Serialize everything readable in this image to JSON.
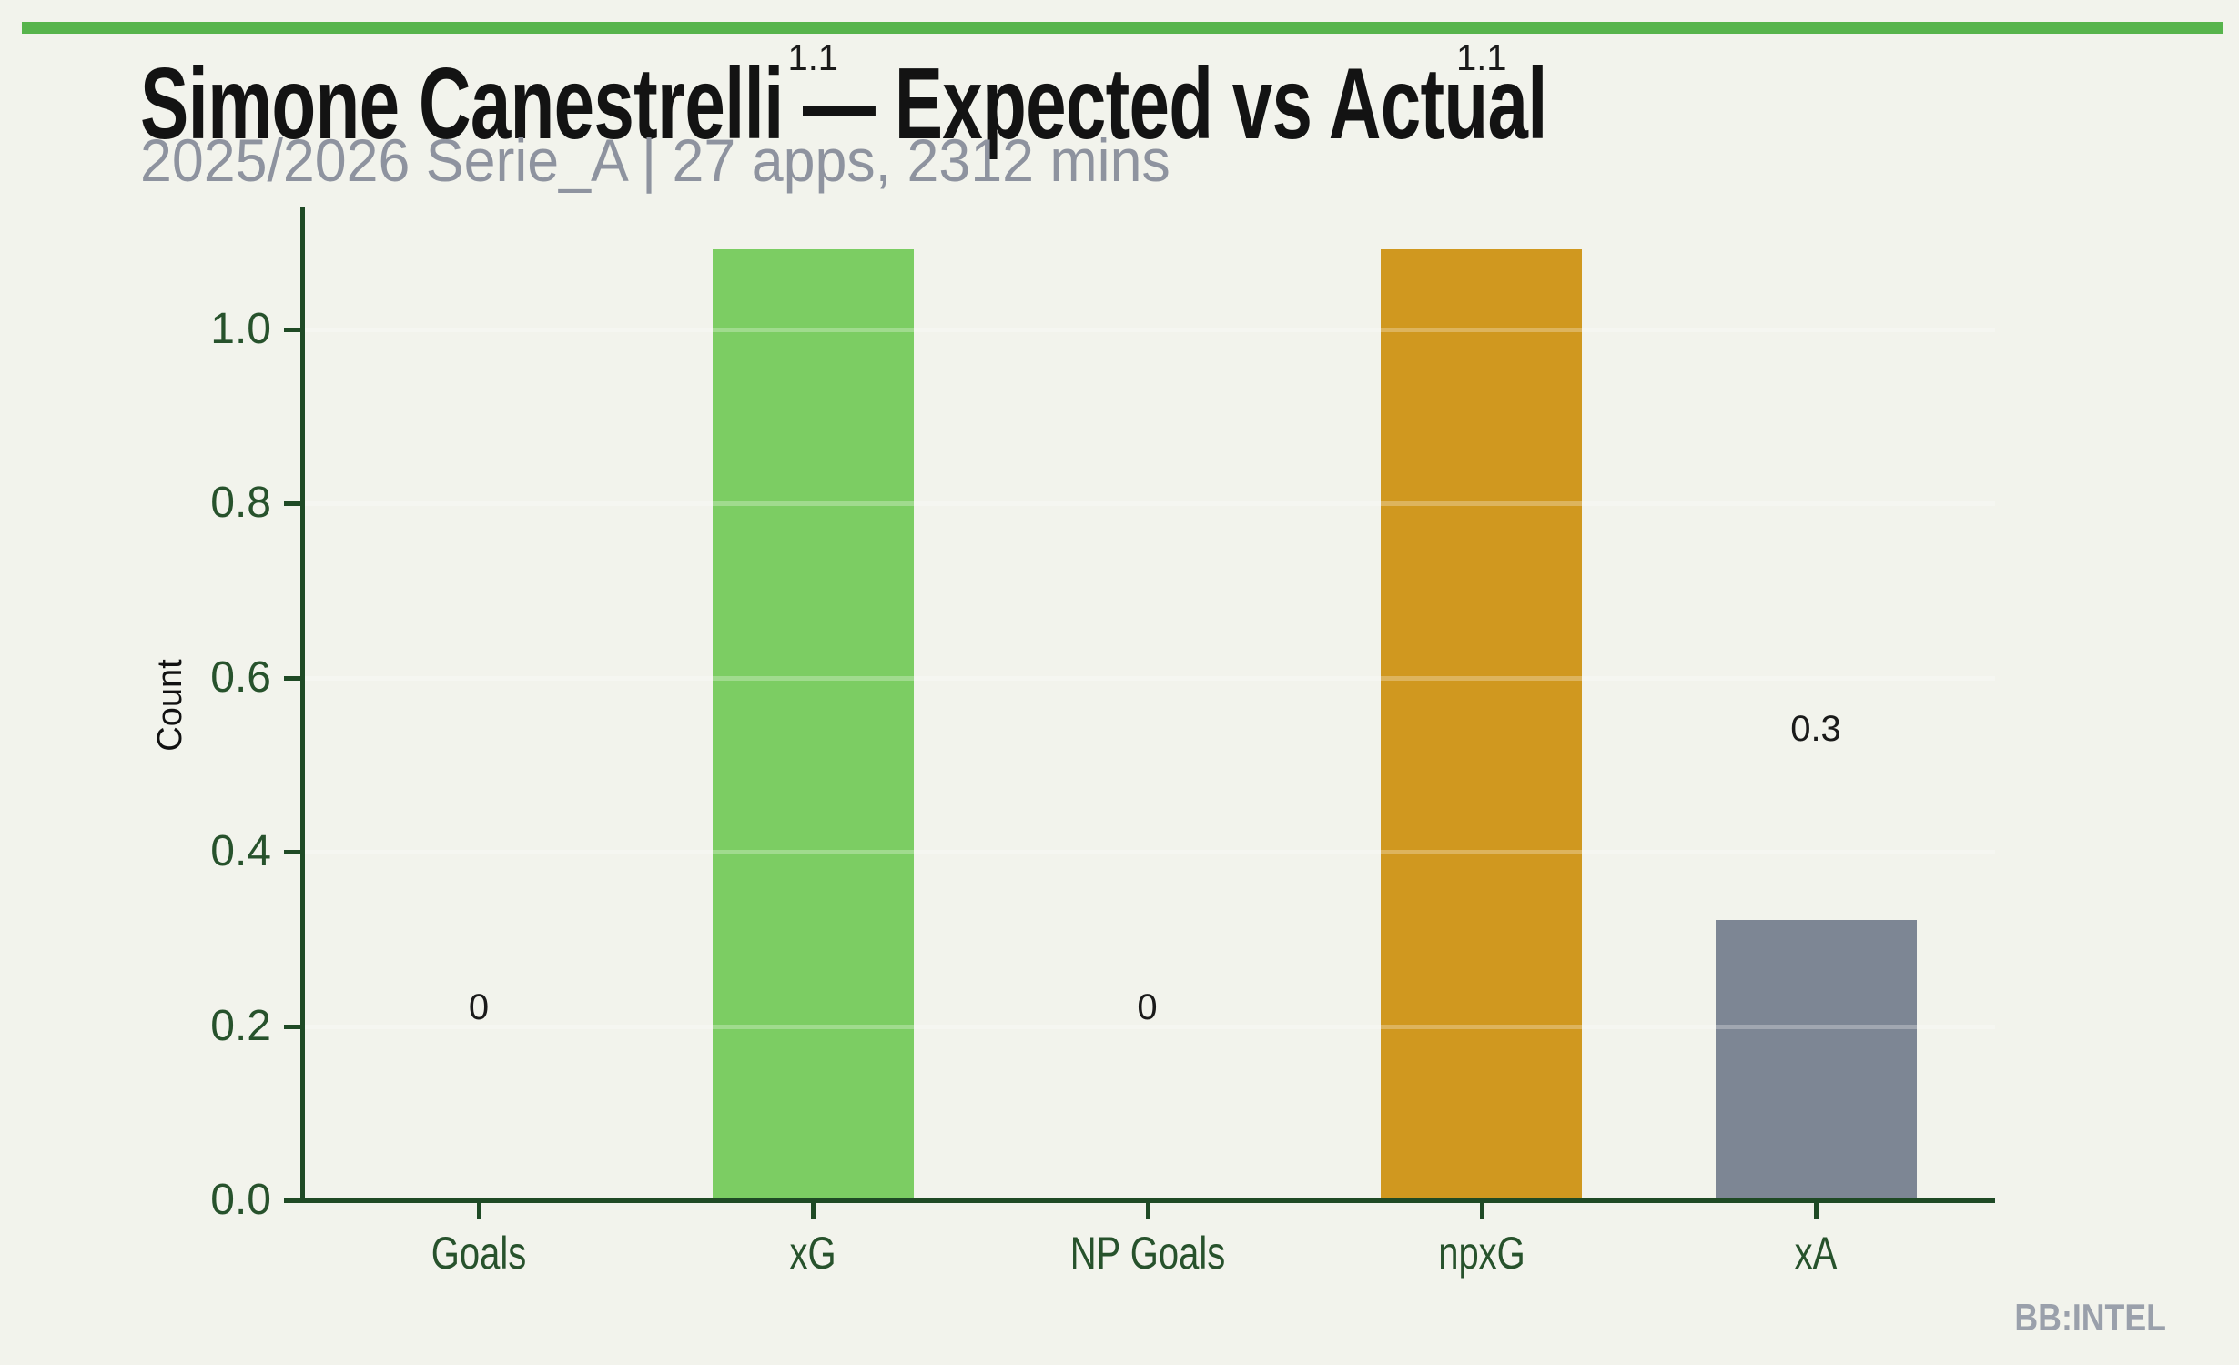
{
  "page": {
    "background_color": "#f2f3ec",
    "accent_bar_color": "#57b44c"
  },
  "header": {
    "title": "Simone Canestrelli — Expected vs Actual",
    "subtitle": "2025/2026 Serie_A | 27 apps, 2312 mins"
  },
  "watermark": "BB:INTEL",
  "chart_data": {
    "type": "bar",
    "title": "Simone Canestrelli — Expected vs Actual",
    "subtitle": "2025/2026 Serie_A | 27 apps, 2312 mins",
    "categories": [
      "Goals",
      "xG",
      "NP Goals",
      "npxG",
      "xA"
    ],
    "values": [
      0,
      1.09,
      0,
      1.09,
      0.32
    ],
    "bar_labels": [
      "0",
      "1.1",
      "0",
      "1.1",
      "0.3"
    ],
    "bar_colors": [
      "#7ccd63",
      "#7ccd63",
      "#d0981f",
      "#d0981f",
      "#7d8694"
    ],
    "xlabel": "",
    "ylabel": "Count",
    "yticks": [
      0.0,
      0.2,
      0.4,
      0.6,
      0.8,
      1.0
    ],
    "ytick_labels": [
      "0.0",
      "0.2",
      "0.4",
      "0.6",
      "0.8",
      "1.0"
    ],
    "ylim": [
      0,
      1.14
    ],
    "grid": "horizontal-white-over-bars",
    "legend": false,
    "axis_color": "#1f4a25",
    "tick_text_color": "#27522c",
    "value_label_color": "#1a1a1a"
  }
}
